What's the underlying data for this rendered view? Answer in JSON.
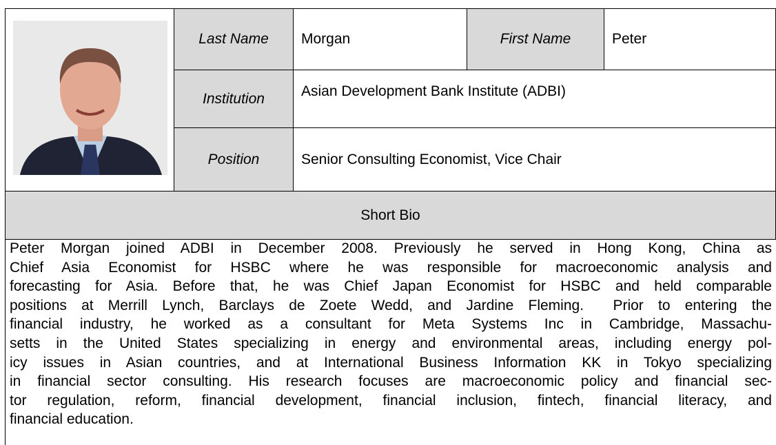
{
  "profile": {
    "last_name_label": "Last Name",
    "last_name": "Morgan",
    "first_name_label": "First Name",
    "first_name": "Peter",
    "institution_label": "Institution",
    "institution": "Asian Development Bank Institute (ADBI)",
    "position_label": "Position",
    "position": "Senior Consulting Economist, Vice Chair"
  },
  "bio": {
    "title": "Short Bio",
    "lines": [
      "Peter Morgan joined ADBI in December 2008. Previously he served in Hong Kong, China as",
      "Chief Asia Economist for HSBC where he was responsible for macroeconomic analysis and",
      "forecasting for Asia. Before that, he was Chief Japan Economist for HSBC and held comparable",
      "positions at Merrill Lynch, Barclays de Zoete Wedd, and Jardine Fleming.  Prior to entering the",
      "financial industry, he worked as a consultant for Meta Systems Inc in Cambridge, Massachu-",
      "setts in the United States specializing in energy and environmental areas, including energy pol-",
      "icy issues in Asian countries, and at International Business Information KK in Tokyo specializing",
      "in financial sector consulting. His research focuses are macroeconomic policy and financial sec-",
      "tor regulation, reform, financial development, financial inclusion, fintech, financial literacy, and",
      "financial education."
    ]
  }
}
